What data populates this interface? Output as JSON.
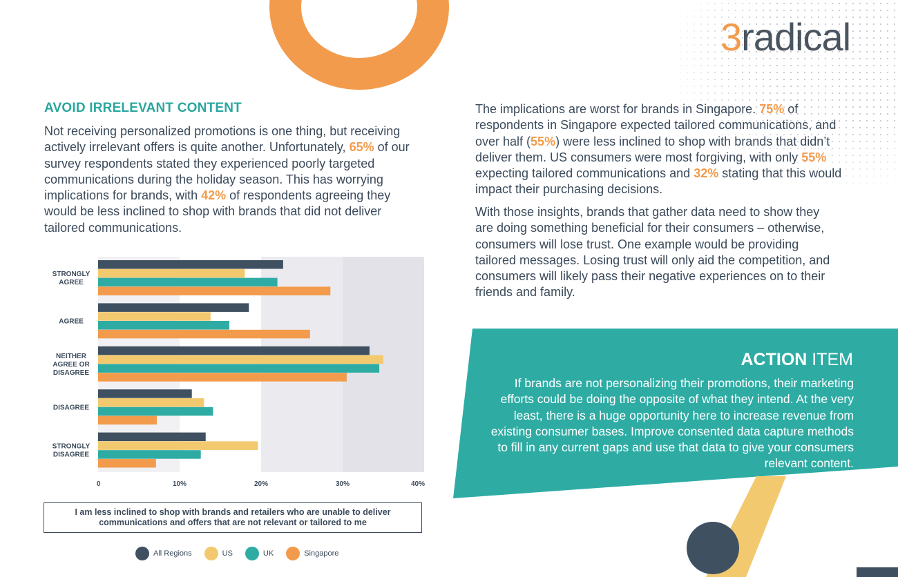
{
  "logo": {
    "digit": "3",
    "word": "radical"
  },
  "left": {
    "heading": "AVOID IRRELEVANT CONTENT",
    "p1": "Not receiving personalized promotions is one thing, but receiving actively irrelevant offers is quite another. Unfortunately, ",
    "p1_hl1": "65%",
    "p1_b": " of our survey respondents stated they experienced poorly targeted communications during the holiday season. This has worrying implications for brands, with ",
    "p1_hl2": "42%",
    "p1_c": " of respondents agreeing they would be less inclined to shop with brands that did not deliver tailored communications."
  },
  "right": {
    "p1_a": "The implications are worst for brands in Singapore. ",
    "p1_hl1": "75%",
    "p1_b": " of respondents in Singapore expected tailored communications, and over half (",
    "p1_hl2": "55%",
    "p1_c": ") were less inclined to shop with brands that didn’t deliver them. US consumers were most forgiving, with only ",
    "p1_hl3": "55%",
    "p1_d": " expecting tailored communications and ",
    "p1_hl4": "32%",
    "p1_e": " stating that this would impact their purchasing decisions.",
    "p2": "With those insights, brands that gather data need to show they are doing something beneficial for their consumers – otherwise, consumers will lose trust. One example would be providing tailored messages. Losing trust will only aid the competition, and consumers will likely pass their negative experiences on to their friends and family."
  },
  "action": {
    "title_bold": "ACTION",
    "title_rest": " ITEM",
    "text": "If brands are not personalizing their promotions, their marketing efforts could be doing the opposite of what they intend. At the very least, there is a huge opportunity here to increase revenue from existing consumer bases. Improve consented data capture methods to fill in any current gaps and use that data to give your consumers relevant content."
  },
  "chart_data": {
    "type": "bar",
    "orientation": "horizontal",
    "categories": [
      [
        "STRONGLY",
        "AGREE"
      ],
      [
        "AGREE"
      ],
      [
        "NEITHER",
        "AGREE OR",
        "DISAGREE"
      ],
      [
        "DISAGREE"
      ],
      [
        "STRONGLY",
        "DISAGREE"
      ]
    ],
    "series": [
      {
        "name": "All Regions",
        "color": "#3f5060",
        "values": [
          22.7,
          18.5,
          33.3,
          11.5,
          13.2
        ]
      },
      {
        "name": "US",
        "color": "#f3c970",
        "values": [
          18.0,
          13.8,
          35.0,
          13.0,
          19.6
        ]
      },
      {
        "name": "UK",
        "color": "#2eaca4",
        "values": [
          22.0,
          16.1,
          34.5,
          14.1,
          12.6
        ]
      },
      {
        "name": "Singapore",
        "color": "#f39b4c",
        "values": [
          28.5,
          26.0,
          30.5,
          7.2,
          7.1
        ]
      }
    ],
    "xticks": [
      "0",
      "10%",
      "20%",
      "30%",
      "40%"
    ],
    "xlim": [
      0,
      40
    ],
    "caption": "I am less inclined to shop with brands and retailers who are unable to deliver communications and offers that are not relevant or tailored to me"
  },
  "colors": {
    "accent_teal": "#2eaca4",
    "accent_orange": "#f39b4c",
    "accent_yellow": "#f3c970",
    "dark": "#3f5060"
  }
}
